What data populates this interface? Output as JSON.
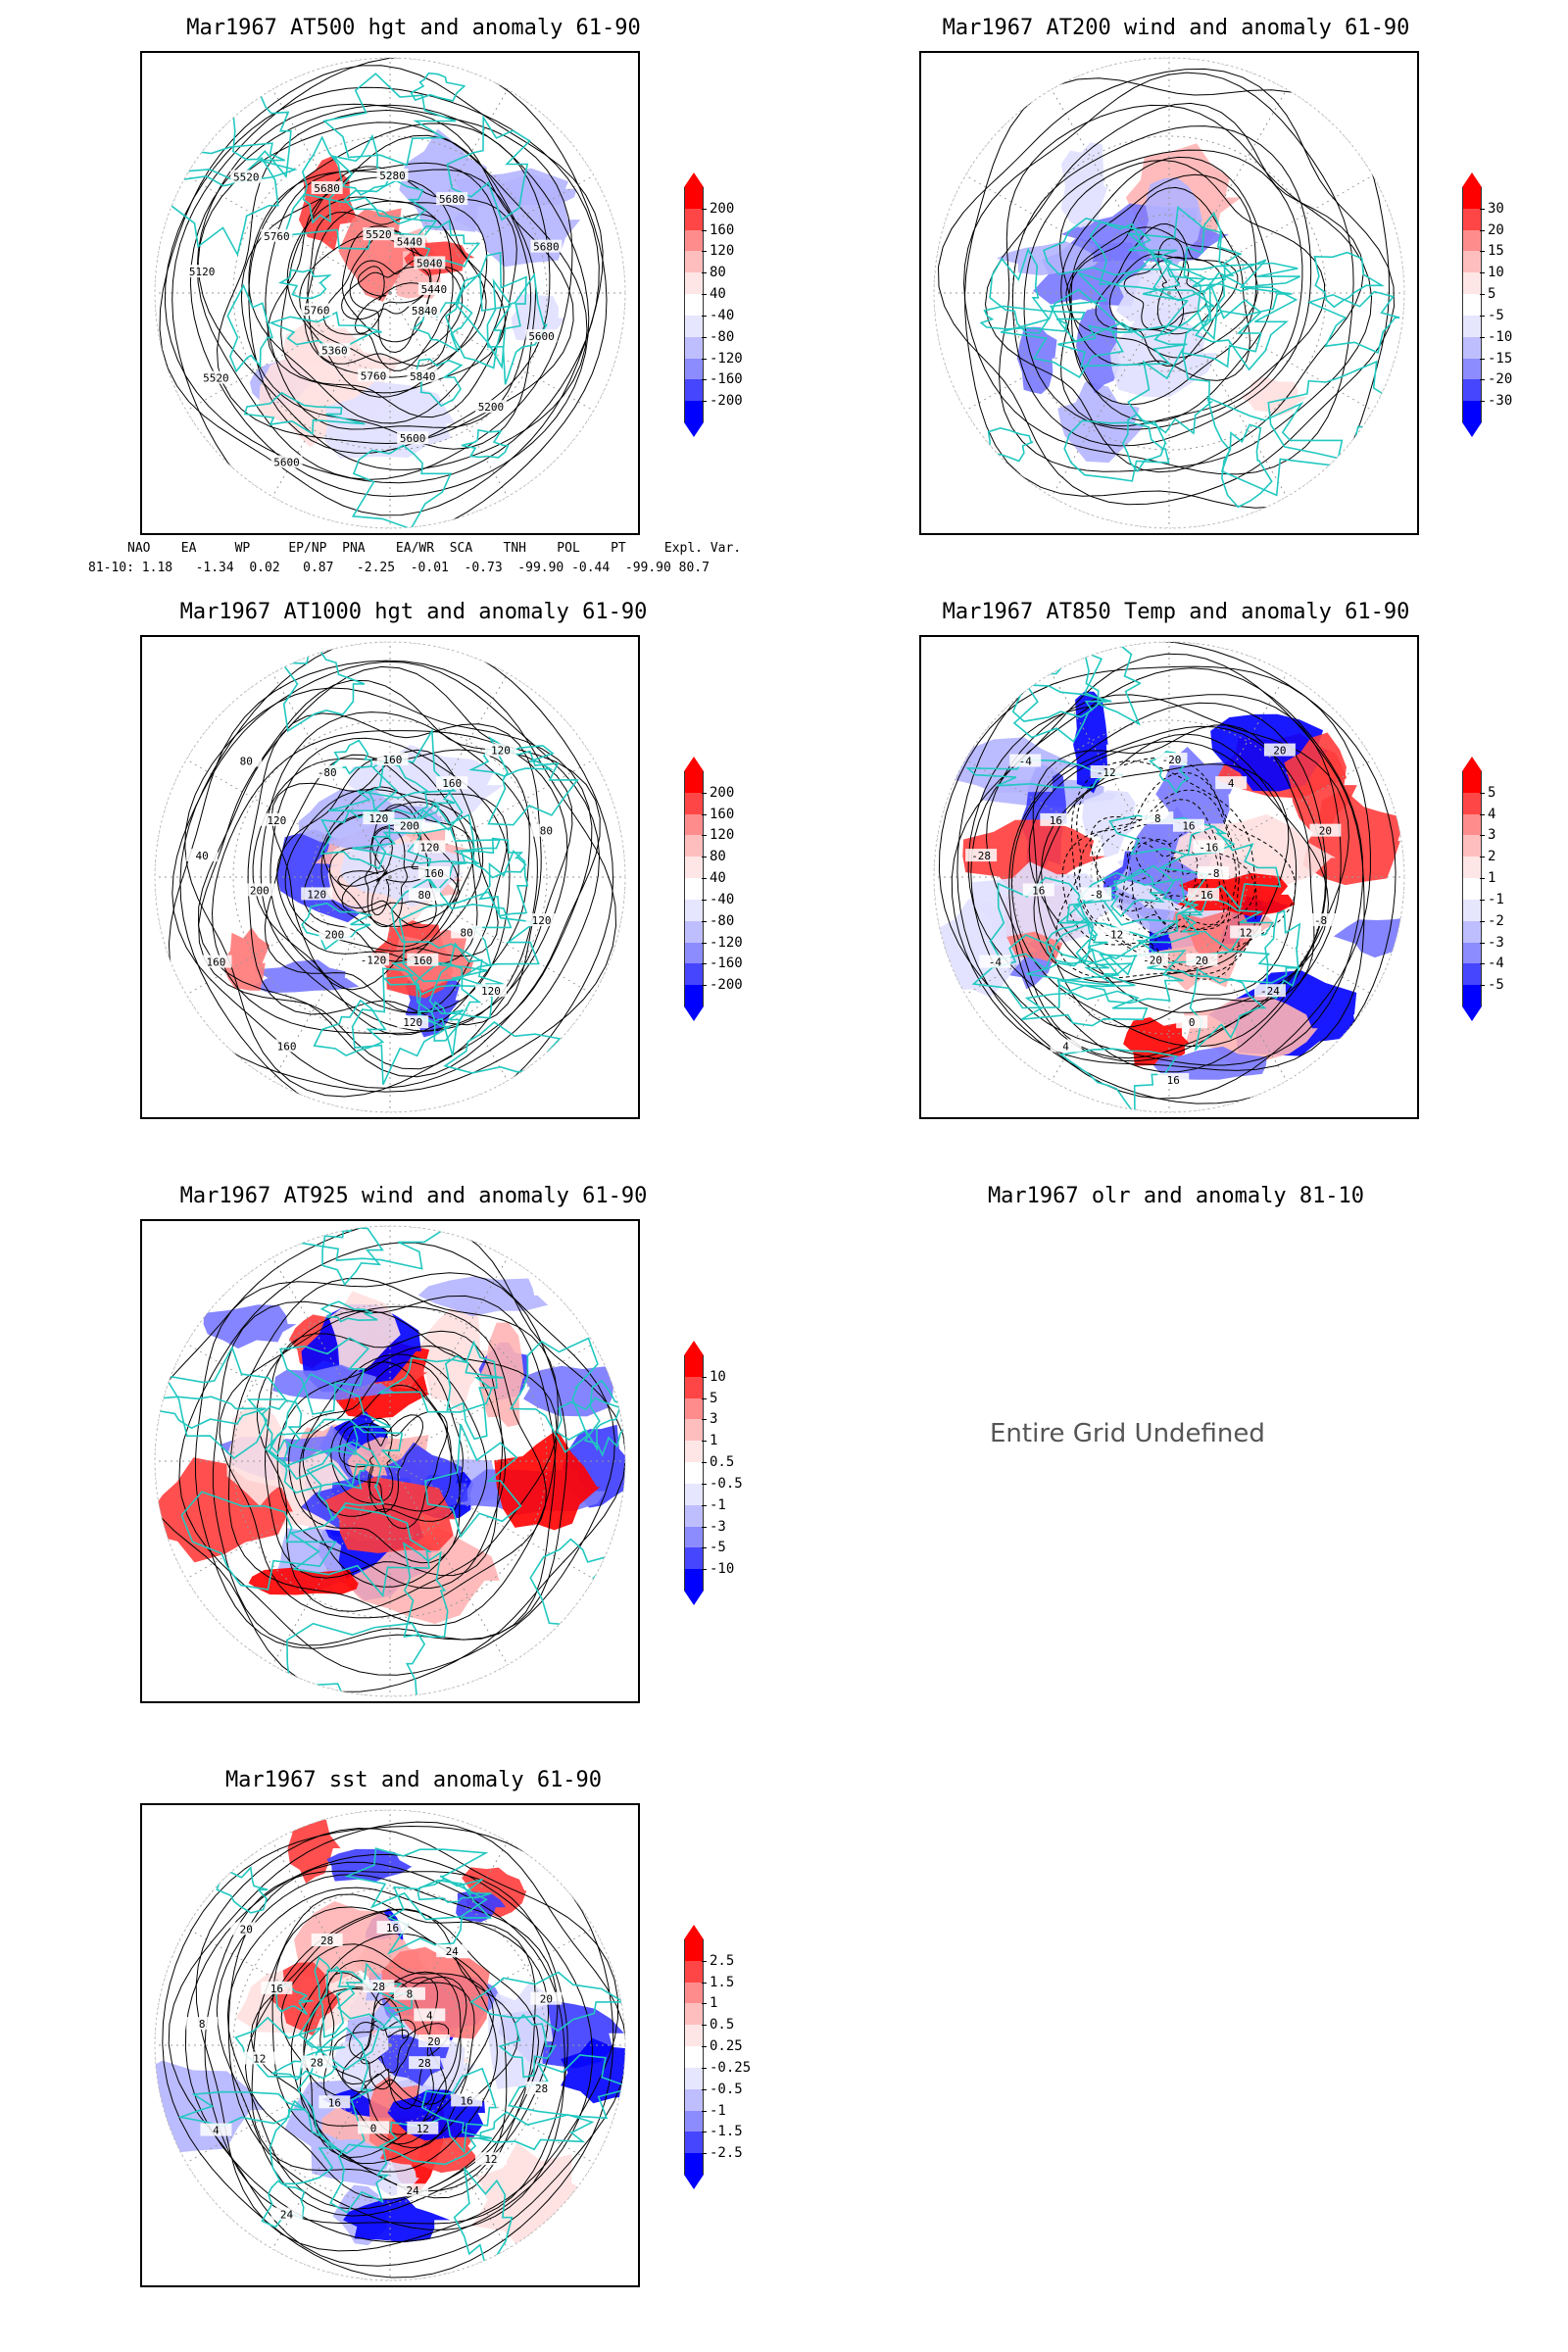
{
  "panels": [
    {
      "id": "p500",
      "title": "Mar1967 AT500 hgt and anomaly 61-90",
      "contour_labels": [
        "5840",
        "5760",
        "5680",
        "5600",
        "5520",
        "5440",
        "5360",
        "5280",
        "5200",
        "5120",
        "5040",
        "5760",
        "5680",
        "5600",
        "5520",
        "5440",
        "5840",
        "5760",
        "5680",
        "5600",
        "5520"
      ],
      "colorbar": [
        "200",
        "160",
        "120",
        "80",
        "40",
        "-40",
        "-80",
        "-120",
        "-160",
        "-200"
      ]
    },
    {
      "id": "p200",
      "title": "Mar1967 AT200 wind and anomaly 61-90",
      "contour_labels": [],
      "colorbar": [
        "30",
        "20",
        "15",
        "10",
        "5",
        "-5",
        "-10",
        "-15",
        "-20",
        "-30"
      ]
    },
    {
      "id": "p1000",
      "title": "Mar1967 AT1000 hgt and anomaly 61-90",
      "contour_labels": [
        "80",
        "120",
        "160",
        "120",
        "80",
        "160",
        "200",
        "160",
        "120",
        "40",
        "120",
        "-120",
        "-80",
        "120",
        "160",
        "200",
        "160",
        "120",
        "80",
        "160",
        "120",
        "80",
        "200",
        "120"
      ],
      "colorbar": [
        "200",
        "160",
        "120",
        "80",
        "40",
        "-40",
        "-80",
        "-120",
        "-160",
        "-200"
      ]
    },
    {
      "id": "p850",
      "title": "Mar1967 AT850 Temp and anomaly 61-90",
      "contour_labels": [
        "-16",
        "-8",
        "4",
        "0",
        "-4",
        "-8",
        "-12",
        "-20",
        "-24",
        "-28",
        "-16",
        "-20",
        "-12",
        "-8",
        "-4",
        "16",
        "20",
        "16",
        "20",
        "4",
        "8",
        "12",
        "16",
        "20",
        "16"
      ],
      "colorbar": [
        "5",
        "4",
        "3",
        "2",
        "1",
        "-1",
        "-2",
        "-3",
        "-4",
        "-5"
      ]
    },
    {
      "id": "p925",
      "title": "Mar1967 AT925 wind and anomaly 61-90",
      "contour_labels": [],
      "colorbar": [
        "10",
        "5",
        "3",
        "1",
        "0.5",
        "-0.5",
        "-1",
        "-3",
        "-5",
        "-10"
      ]
    },
    {
      "id": "polr",
      "title": "Mar1967 olr and anomaly 81-10",
      "message": "Entire Grid Undefined"
    },
    {
      "id": "psst",
      "title": "Mar1967 sst and anomaly 61-90",
      "contour_labels": [
        "28",
        "28",
        "24",
        "24",
        "20",
        "20",
        "16",
        "16",
        "12",
        "8",
        "4",
        "0",
        "28",
        "28",
        "4",
        "8",
        "12",
        "16",
        "20",
        "24",
        "28",
        "16",
        "12"
      ],
      "colorbar": [
        "2.5",
        "1.5",
        "1",
        "0.5",
        "0.25",
        "-0.25",
        "-0.5",
        "-1",
        "-1.5",
        "-2.5"
      ]
    }
  ],
  "teleconnection": {
    "headers": [
      "NAO",
      "EA",
      "WP",
      "EP/NP",
      "PNA",
      "EA/WR",
      "SCA",
      "TNH",
      "POL",
      "PT",
      "Expl. Var."
    ],
    "row_label": "81-10:",
    "values": [
      "1.18",
      "-1.34",
      "0.02",
      "0.87",
      "-2.25",
      "-0.01",
      "-0.73",
      "-99.90",
      "-0.44",
      "-99.90",
      "80.7"
    ]
  },
  "colors": {
    "coast": "#21c8c0",
    "red_scale": [
      "#ff0000",
      "#ff3c3c",
      "#ff7878",
      "#ffb4b4",
      "#ffe0e0"
    ],
    "blue_scale": [
      "#e0e0ff",
      "#b4b4ff",
      "#7878ff",
      "#3c3cff",
      "#0000ff"
    ]
  }
}
